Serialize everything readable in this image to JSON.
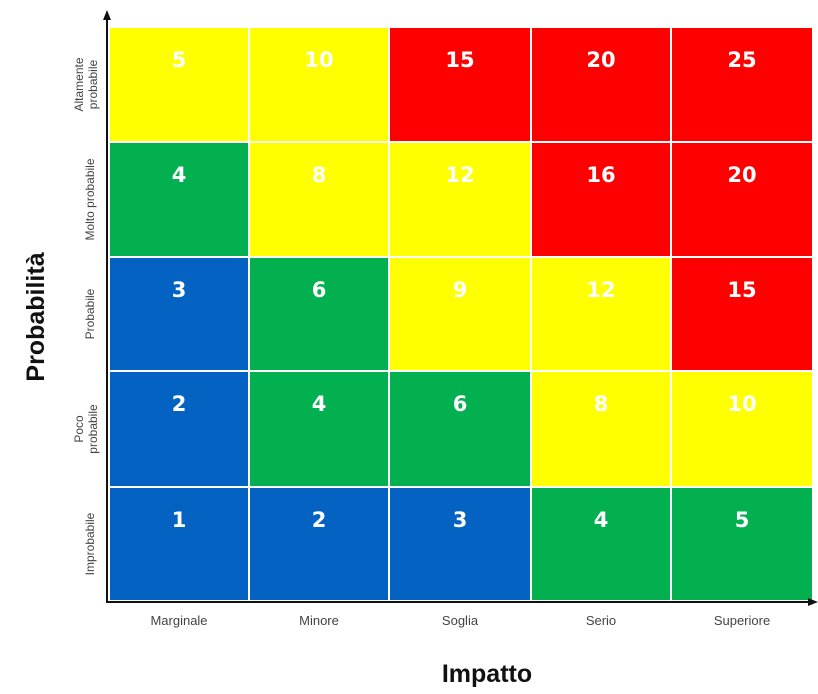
{
  "chart_data": {
    "type": "heatmap",
    "xlabel": "Impatto",
    "ylabel": "Probabilità",
    "x_categories": [
      "Marginale",
      "Minore",
      "Soglia",
      "Serio",
      "Superiore"
    ],
    "y_categories": [
      [
        "Improbabile"
      ],
      [
        "Poco",
        "probabile"
      ],
      [
        "Probabile"
      ],
      [
        "Molto probabile"
      ],
      [
        "Altamente",
        "probabile"
      ]
    ],
    "values": [
      [
        1,
        2,
        3,
        4,
        5
      ],
      [
        2,
        4,
        6,
        8,
        10
      ],
      [
        3,
        6,
        9,
        12,
        15
      ],
      [
        4,
        8,
        12,
        16,
        20
      ],
      [
        5,
        10,
        15,
        20,
        25
      ]
    ],
    "colors": {
      "blue": "#0463c2",
      "green": "#02b04f",
      "yellow": "#ffff00",
      "red": "#ff0000"
    },
    "cell_colors": [
      [
        "blue",
        "blue",
        "blue",
        "green",
        "green"
      ],
      [
        "blue",
        "green",
        "green",
        "yellow",
        "yellow"
      ],
      [
        "blue",
        "green",
        "yellow",
        "yellow",
        "red"
      ],
      [
        "green",
        "yellow",
        "yellow",
        "red",
        "red"
      ],
      [
        "yellow",
        "yellow",
        "red",
        "red",
        "red"
      ]
    ],
    "grid": false,
    "legend": "none"
  }
}
